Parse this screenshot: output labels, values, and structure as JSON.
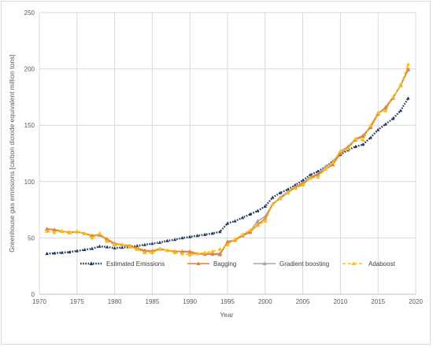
{
  "chart_data": {
    "type": "line",
    "title": "",
    "xlabel": "Year",
    "ylabel": "Greenhouse gas emissions  [carbon dioxide equivalent million tons]",
    "xlim": [
      1970,
      2020
    ],
    "ylim": [
      0,
      250
    ],
    "x_ticks": [
      "1970",
      "1975",
      "1980",
      "1985",
      "1990",
      "1995",
      "2000",
      "2005",
      "2010",
      "2015",
      "2020"
    ],
    "y_ticks": [
      "0",
      "50",
      "100",
      "150",
      "200",
      "250"
    ],
    "grid": "horizontal and vertical",
    "legend_position": "inside-center-lower",
    "series": [
      {
        "name": "Estimated Emissions",
        "color": "#1f3864",
        "style": "dotted",
        "marker": "triangle",
        "x": [
          1971,
          1972,
          1973,
          1974,
          1975,
          1976,
          1977,
          1978,
          1979,
          1980,
          1981,
          1982,
          1983,
          1984,
          1985,
          1986,
          1987,
          1988,
          1989,
          1990,
          1991,
          1992,
          1993,
          1994,
          1995,
          1996,
          1997,
          1998,
          1999,
          2000,
          2001,
          2002,
          2003,
          2004,
          2005,
          2006,
          2007,
          2008,
          2009,
          2010,
          2011,
          2012,
          2013,
          2014,
          2015,
          2016,
          2017,
          2018,
          2019
        ],
        "values": [
          36,
          36.5,
          37,
          37.5,
          38.5,
          39.5,
          40.5,
          42.5,
          42,
          41,
          41.5,
          42,
          43,
          44,
          45,
          46,
          47.5,
          48.5,
          50,
          51,
          52,
          53,
          54,
          55.5,
          63,
          65,
          68,
          71,
          74,
          78,
          86,
          90,
          93,
          97,
          101,
          106,
          109,
          113,
          118,
          124,
          128,
          131,
          133,
          139,
          146,
          151,
          156,
          163,
          174
        ]
      },
      {
        "name": "Bagging",
        "color": "#ed7d31",
        "style": "solid",
        "marker": "triangle",
        "x": [
          1971,
          1972,
          1973,
          1974,
          1975,
          1976,
          1977,
          1978,
          1979,
          1980,
          1981,
          1982,
          1983,
          1984,
          1985,
          1986,
          1987,
          1988,
          1989,
          1990,
          1991,
          1992,
          1993,
          1994,
          1995,
          1996,
          1997,
          1998,
          1999,
          2000,
          2001,
          2002,
          2003,
          2004,
          2005,
          2006,
          2007,
          2008,
          2009,
          2010,
          2011,
          2012,
          2013,
          2014,
          2015,
          2016,
          2017,
          2018,
          2019
        ],
        "values": [
          58,
          57,
          56,
          55,
          55.5,
          54,
          52,
          53,
          49,
          45,
          44,
          43,
          41,
          39,
          38.5,
          40,
          39,
          38,
          38,
          38,
          36,
          36,
          36,
          36,
          46,
          48,
          52,
          55,
          62,
          67,
          80,
          85,
          90,
          95,
          98,
          103,
          106,
          111,
          115,
          125,
          130,
          137,
          140,
          148,
          160,
          166,
          175,
          185,
          200
        ]
      },
      {
        "name": "Gradient boosting",
        "color": "#a5a5a5",
        "style": "solid",
        "marker": "triangle",
        "x": [
          1971,
          1972,
          1973,
          1974,
          1975,
          1976,
          1977,
          1978,
          1979,
          1980,
          1981,
          1982,
          1983,
          1984,
          1985,
          1986,
          1987,
          1988,
          1989,
          1990,
          1991,
          1992,
          1993,
          1994,
          1995,
          1996,
          1997,
          1998,
          1999,
          2000,
          2001,
          2002,
          2003,
          2004,
          2005,
          2006,
          2007,
          2008,
          2009,
          2010,
          2011,
          2012,
          2013,
          2014,
          2015,
          2016,
          2017,
          2018,
          2019
        ],
        "values": [
          58,
          57.5,
          56,
          55,
          55.5,
          54,
          52,
          52.5,
          48,
          45,
          44,
          43,
          40,
          38,
          38.5,
          40.5,
          39,
          38,
          38,
          37,
          36,
          35.5,
          35.5,
          35,
          47,
          48,
          53,
          56,
          65,
          69,
          80,
          86,
          91,
          95,
          99,
          104,
          107,
          113,
          117,
          127,
          131,
          138,
          141,
          149,
          161,
          165,
          174,
          186,
          199
        ]
      },
      {
        "name": "Adaboost",
        "color": "#ffc000",
        "style": "dashed",
        "marker": "triangle",
        "x": [
          1971,
          1972,
          1973,
          1974,
          1975,
          1976,
          1977,
          1978,
          1979,
          1980,
          1981,
          1982,
          1983,
          1984,
          1985,
          1986,
          1987,
          1988,
          1989,
          1990,
          1991,
          1992,
          1993,
          1994,
          1995,
          1996,
          1997,
          1998,
          1999,
          2000,
          2001,
          2002,
          2003,
          2004,
          2005,
          2006,
          2007,
          2008,
          2009,
          2010,
          2011,
          2012,
          2013,
          2014,
          2015,
          2016,
          2017,
          2018,
          2019
        ],
        "values": [
          56,
          55,
          56,
          54.5,
          56,
          54,
          50,
          54,
          47,
          44,
          44,
          42,
          40,
          37,
          37,
          40,
          39,
          37,
          36,
          35,
          36,
          37,
          38,
          40,
          44,
          49,
          53,
          57,
          61,
          65,
          80,
          85,
          90,
          94,
          97,
          103,
          104,
          111,
          117,
          127,
          129,
          138,
          137,
          150,
          161,
          163,
          175,
          185,
          204
        ]
      }
    ]
  }
}
